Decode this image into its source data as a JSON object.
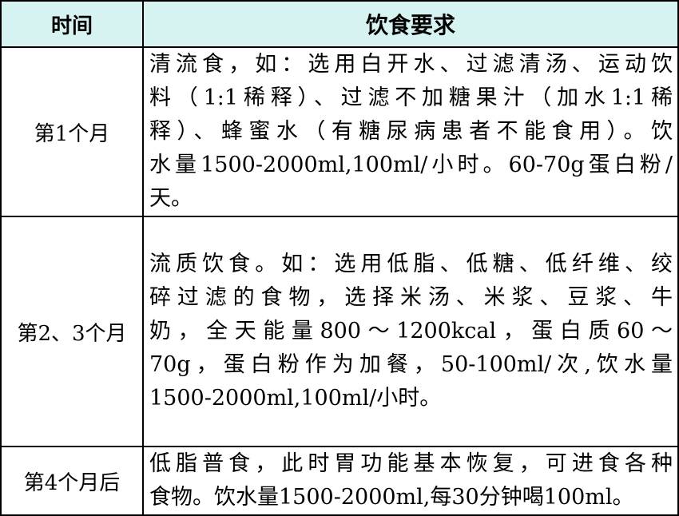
{
  "header": {
    "col_time": "时间",
    "col_diet": "饮食要求"
  },
  "colors": {
    "header_bg": "#d6f3f1",
    "border": "#000000"
  },
  "rows": [
    {
      "time": "第1个月",
      "lines": [
        "清流食，如：选用白开水、过滤清汤、运动饮",
        "料（1:1稀释）、过滤不加糖果汁（加水1:1稀",
        "释）、蜂蜜水（有糖尿病患者不能食用）。饮",
        "水量1500-2000ml,100ml/小时。60-70g蛋白粉/",
        "天。"
      ]
    },
    {
      "time": "第2、3个月",
      "lines": [
        "流质饮食。如：选用低脂、低糖、低纤维、绞",
        "碎过滤的食物，选择米汤、米浆、豆浆、牛",
        "奶，全天能量800～1200kcal，蛋白质60～",
        "70g，蛋白粉作为加餐，50-100ml/次,饮水量",
        "1500-2000ml,100ml/小时。"
      ]
    },
    {
      "time": "第4个月后",
      "lines": [
        "低脂普食，此时胃功能基本恢复，可进食各种",
        "食物。饮水量1500-2000ml,每30分钟喝100ml。"
      ]
    }
  ]
}
